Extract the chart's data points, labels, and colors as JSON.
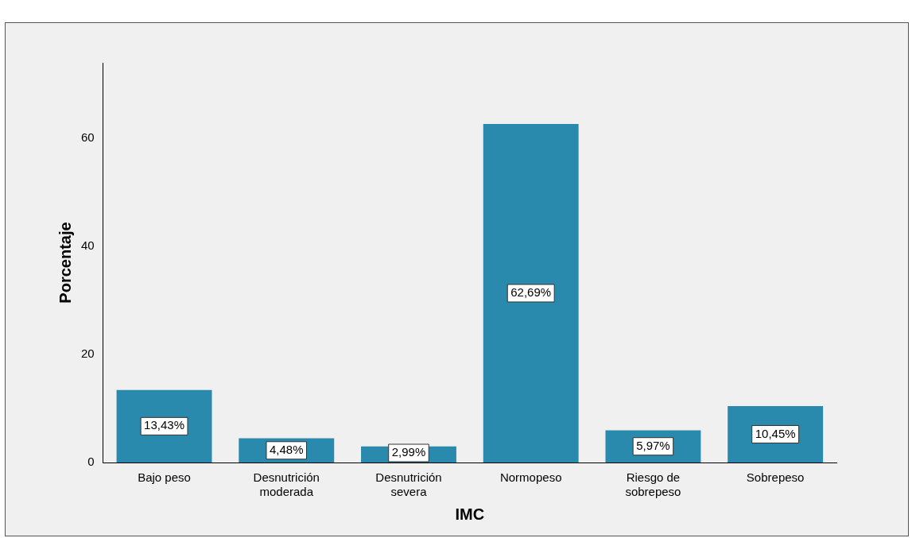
{
  "chart_data": {
    "type": "bar",
    "xlabel": "IMC",
    "ylabel": "Porcentaje",
    "categories": [
      "Bajo peso",
      "Desnutrición\nmoderada",
      "Desnutrición\nsevera",
      "Normopeso",
      "Riesgo de\nsobrepeso",
      "Sobrepeso"
    ],
    "values": [
      13.43,
      4.48,
      2.99,
      62.69,
      5.97,
      10.45
    ],
    "value_labels": [
      "13,43%",
      "4,48%",
      "2,99%",
      "62,69%",
      "5,97%",
      "10,45%"
    ],
    "color": "#2a8aad",
    "ylim": [
      0,
      74
    ],
    "yticks": [
      0,
      20,
      40,
      60
    ],
    "grid": false,
    "legend": false
  }
}
